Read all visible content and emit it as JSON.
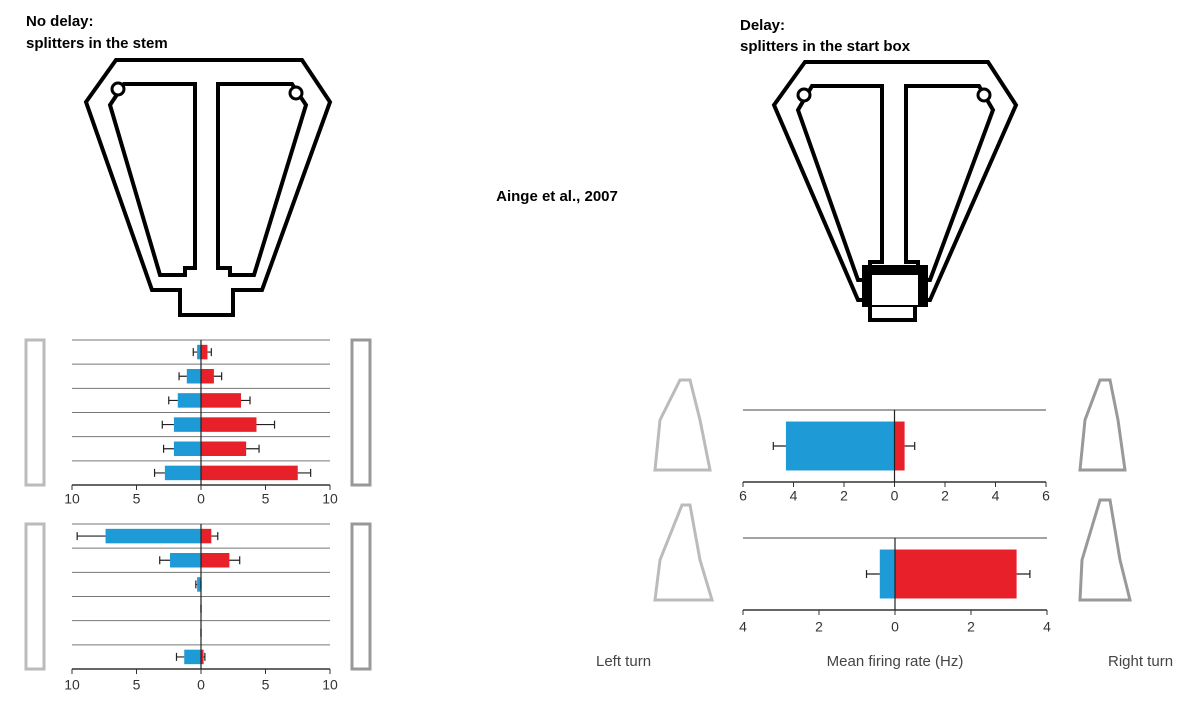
{
  "left_title": [
    "No delay:",
    "splitters in the stem"
  ],
  "right_title": [
    "Delay:",
    "splitters in the start box"
  ],
  "citation": "Ainge et al., 2007",
  "left_label": "Left turn",
  "x_label": "Mean firing rate (Hz)",
  "right_label": "Right turn",
  "chart_data": [
    {
      "type": "bar",
      "orientation": "horizontal",
      "grid": true,
      "series": [
        {
          "color": "#1e9ad6",
          "values": [
            -0.3,
            -1.1,
            -1.8,
            -2.1,
            -2.1,
            -2.8
          ],
          "errors": [
            0.3,
            0.6,
            0.7,
            0.9,
            0.8,
            0.8
          ]
        },
        {
          "color": "#e8202a",
          "values": [
            0.5,
            1.0,
            3.1,
            4.3,
            3.5,
            7.5
          ],
          "errors": [
            0.3,
            0.6,
            0.7,
            1.4,
            1.0,
            1.0
          ]
        }
      ],
      "xlim": [
        -10,
        10
      ],
      "xticks": [
        {
          "value": -10,
          "label": "10"
        },
        {
          "value": -5,
          "label": "5"
        },
        0,
        5,
        10
      ]
    },
    {
      "type": "bar",
      "orientation": "horizontal",
      "grid": true,
      "series": [
        {
          "color": "#1e9ad6",
          "values": [
            -7.4,
            -2.4,
            -0.3,
            0,
            0,
            -1.3
          ],
          "errors": [
            2.2,
            0.8,
            0.1,
            0,
            0,
            0.6
          ]
        },
        {
          "color": "#e8202a",
          "values": [
            0.8,
            2.2,
            0,
            0,
            0,
            0.2
          ],
          "errors": [
            0.5,
            0.8,
            0,
            0,
            0,
            0.1
          ]
        }
      ],
      "xlim": [
        -10,
        10
      ],
      "xticks": [
        {
          "value": -10,
          "label": "10"
        },
        {
          "value": -5,
          "label": "5"
        },
        0,
        5,
        10
      ]
    },
    {
      "type": "bar",
      "orientation": "horizontal",
      "grid": true,
      "series": [
        {
          "color": "#1e9ad6",
          "values": [
            -4.3
          ],
          "errors": [
            0.5
          ]
        },
        {
          "color": "#e8202a",
          "values": [
            0.4
          ],
          "errors": [
            0.4
          ]
        }
      ],
      "xlim": [
        -6,
        6
      ],
      "xticks": [
        {
          "value": -6,
          "label": "6"
        },
        {
          "value": -4,
          "label": "4"
        },
        {
          "value": -2,
          "label": "2"
        },
        0,
        2,
        4,
        6
      ]
    },
    {
      "type": "bar",
      "orientation": "horizontal",
      "grid": true,
      "series": [
        {
          "color": "#1e9ad6",
          "values": [
            -0.4
          ],
          "errors": [
            0.35
          ]
        },
        {
          "color": "#e8202a",
          "values": [
            3.2
          ],
          "errors": [
            0.35
          ]
        }
      ],
      "xlim": [
        -4,
        4
      ],
      "xticks": [
        {
          "value": -4,
          "label": "4"
        },
        {
          "value": -2,
          "label": "2"
        },
        0,
        2,
        4
      ]
    }
  ]
}
